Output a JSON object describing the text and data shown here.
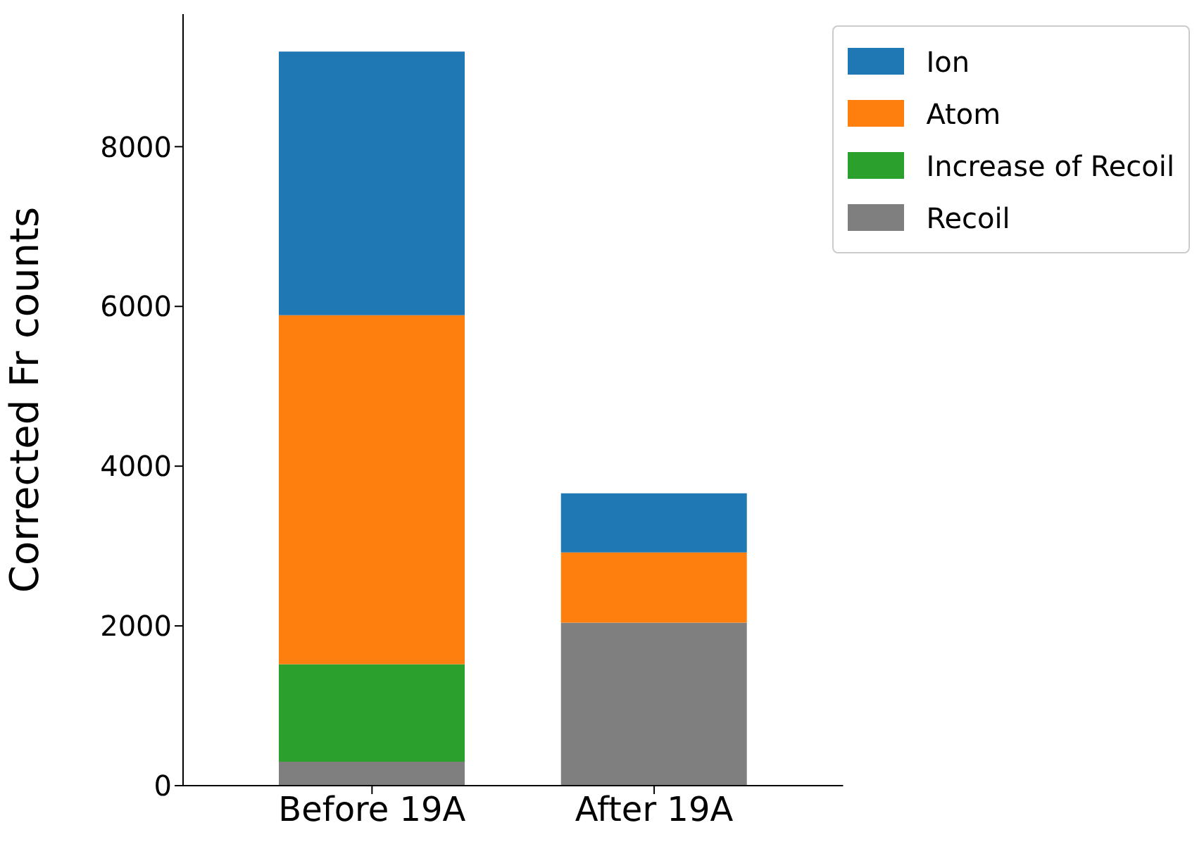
{
  "chart_data": {
    "type": "bar",
    "stacked": true,
    "ylabel": "Corrected Fr counts",
    "categories": [
      "Before 19A",
      "After 19A"
    ],
    "series": [
      {
        "name": "Recoil",
        "color": "#7f7f7f",
        "values": [
          300,
          2040
        ]
      },
      {
        "name": "Increase of Recoil",
        "color": "#2ca02c",
        "values": [
          1220,
          0
        ]
      },
      {
        "name": "Atom",
        "color": "#ff7f0e",
        "values": [
          4370,
          880
        ]
      },
      {
        "name": "Ion",
        "color": "#1f77b4",
        "values": [
          3300,
          740
        ]
      }
    ],
    "ylim": [
      0,
      9660
    ],
    "yticks": [
      0,
      2000,
      4000,
      6000,
      8000
    ],
    "legend": "top right",
    "grid": false
  }
}
